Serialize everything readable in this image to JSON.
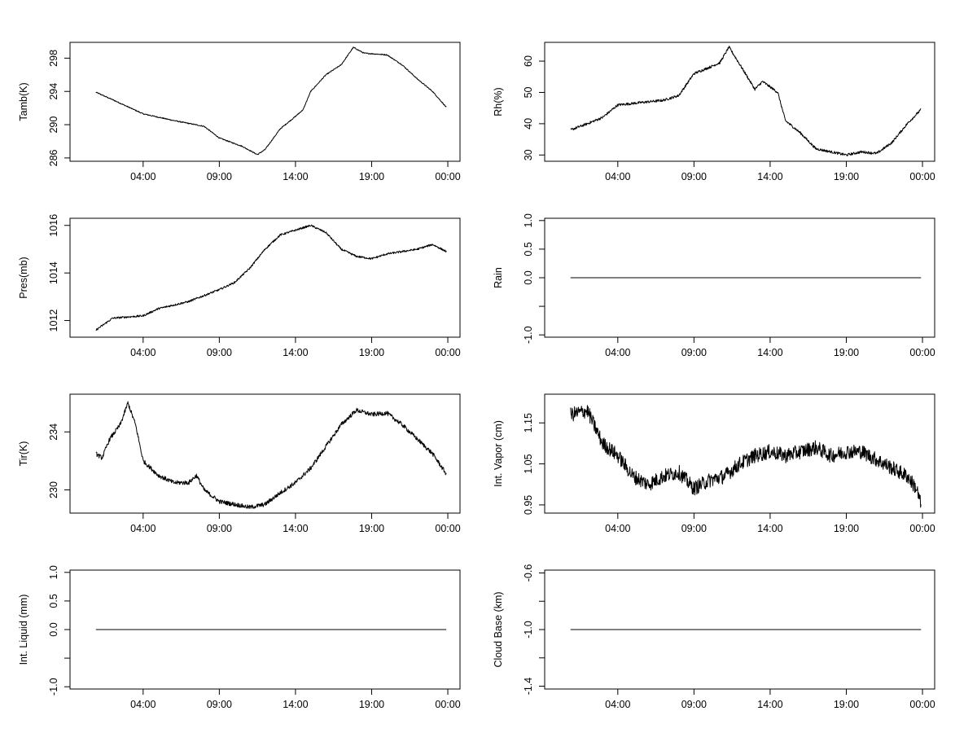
{
  "x_ticks": [
    "04:00",
    "09:00",
    "14:00",
    "19:00",
    "00:00"
  ],
  "x_tick_hours": [
    4,
    9,
    14,
    19,
    24
  ],
  "x_range_hours": [
    -0.8,
    24.8
  ],
  "data_span_hours": [
    0.9,
    23.9
  ],
  "colors": {
    "line": "#000000",
    "axis": "#000000",
    "background": "#ffffff"
  },
  "chart_data": [
    {
      "type": "line",
      "ylabel": "Tamb(K)",
      "ylim": [
        285.6,
        299.9
      ],
      "yticks": [
        286,
        290,
        294,
        298
      ],
      "ytick_labels": [
        "286",
        "290",
        "294",
        "298"
      ],
      "noise": 0.06,
      "points": [
        [
          0.9,
          293.9
        ],
        [
          2,
          293.0
        ],
        [
          4,
          291.3
        ],
        [
          6,
          290.5
        ],
        [
          8,
          289.8
        ],
        [
          9,
          288.4
        ],
        [
          10.5,
          287.4
        ],
        [
          11.5,
          286.4
        ],
        [
          12,
          287.0
        ],
        [
          13,
          289.5
        ],
        [
          14,
          291.0
        ],
        [
          14.5,
          291.8
        ],
        [
          15,
          294.0
        ],
        [
          16,
          296.0
        ],
        [
          17,
          297.2
        ],
        [
          17.8,
          299.3
        ],
        [
          18.5,
          298.6
        ],
        [
          20,
          298.4
        ],
        [
          21,
          297.2
        ],
        [
          22,
          295.5
        ],
        [
          23,
          294.0
        ],
        [
          23.9,
          292.1
        ]
      ]
    },
    {
      "type": "line",
      "ylabel": "Rh(%)",
      "ylim": [
        28,
        66
      ],
      "yticks": [
        30,
        40,
        50,
        60
      ],
      "ytick_labels": [
        "30",
        "40",
        "50",
        "60"
      ],
      "noise": 0.4,
      "points": [
        [
          0.9,
          38.0
        ],
        [
          2,
          40.0
        ],
        [
          3,
          42.0
        ],
        [
          4,
          46.0
        ],
        [
          5,
          46.5
        ],
        [
          6,
          47.0
        ],
        [
          7,
          47.5
        ],
        [
          8,
          49.0
        ],
        [
          9,
          56.0
        ],
        [
          10,
          58.0
        ],
        [
          10.7,
          59.5
        ],
        [
          11.3,
          64.5
        ],
        [
          12,
          59.0
        ],
        [
          12.5,
          55.0
        ],
        [
          13,
          51.0
        ],
        [
          13.5,
          53.5
        ],
        [
          14.5,
          50.0
        ],
        [
          15,
          41.0
        ],
        [
          16,
          37.0
        ],
        [
          17,
          32.0
        ],
        [
          18,
          31.0
        ],
        [
          19,
          30.0
        ],
        [
          20,
          31.0
        ],
        [
          21,
          30.5
        ],
        [
          22,
          34.0
        ],
        [
          23,
          40.0
        ],
        [
          23.9,
          44.5
        ]
      ]
    },
    {
      "type": "line",
      "ylabel": "Pres(mb)",
      "ylim": [
        1011.3,
        1016.3
      ],
      "yticks": [
        1012,
        1014,
        1016
      ],
      "ytick_labels": [
        "1012",
        "1014",
        "1016"
      ],
      "noise": 0.04,
      "points": [
        [
          0.9,
          1011.6
        ],
        [
          2,
          1012.1
        ],
        [
          4,
          1012.2
        ],
        [
          5,
          1012.5
        ],
        [
          7,
          1012.8
        ],
        [
          9,
          1013.3
        ],
        [
          10,
          1013.6
        ],
        [
          11,
          1014.2
        ],
        [
          12,
          1015.0
        ],
        [
          13,
          1015.6
        ],
        [
          14,
          1015.8
        ],
        [
          15,
          1016.0
        ],
        [
          16,
          1015.7
        ],
        [
          17,
          1015.0
        ],
        [
          18,
          1014.7
        ],
        [
          19,
          1014.6
        ],
        [
          20,
          1014.8
        ],
        [
          21,
          1014.9
        ],
        [
          22,
          1015.0
        ],
        [
          23,
          1015.2
        ],
        [
          23.9,
          1014.9
        ]
      ]
    },
    {
      "type": "line",
      "ylabel": "Rain",
      "ylim": [
        -1.04,
        1.04
      ],
      "yticks": [
        -1.0,
        -0.5,
        0.0,
        0.5,
        1.0
      ],
      "ytick_labels": [
        "-1.0",
        "",
        "0.0",
        "0.5",
        "1.0"
      ],
      "noise": 0,
      "points": [
        [
          0.9,
          0.0
        ],
        [
          23.9,
          0.0
        ]
      ]
    },
    {
      "type": "line",
      "ylabel": "Tir(K)",
      "ylim": [
        228.4,
        236.6
      ],
      "yticks": [
        230,
        234
      ],
      "ytick_labels": [
        "230",
        "234"
      ],
      "noise": 0.15,
      "points": [
        [
          0.9,
          232.5
        ],
        [
          1.3,
          232.2
        ],
        [
          1.8,
          233.5
        ],
        [
          2.5,
          234.5
        ],
        [
          3.0,
          236.0
        ],
        [
          3.5,
          234.5
        ],
        [
          4,
          232.0
        ],
        [
          5,
          231.0
        ],
        [
          6,
          230.5
        ],
        [
          7,
          230.5
        ],
        [
          7.5,
          231.0
        ],
        [
          8,
          230.0
        ],
        [
          9,
          229.2
        ],
        [
          10,
          229.0
        ],
        [
          11,
          228.8
        ],
        [
          12,
          229.0
        ],
        [
          13,
          229.8
        ],
        [
          14,
          230.5
        ],
        [
          15,
          231.5
        ],
        [
          16,
          233.0
        ],
        [
          17,
          234.5
        ],
        [
          18,
          235.5
        ],
        [
          19,
          235.2
        ],
        [
          20,
          235.3
        ],
        [
          21,
          234.5
        ],
        [
          22,
          233.5
        ],
        [
          23,
          232.5
        ],
        [
          23.9,
          231.1
        ]
      ]
    },
    {
      "type": "line",
      "ylabel": "Int. Vapor (cm)",
      "ylim": [
        0.93,
        1.22
      ],
      "yticks": [
        0.95,
        1.05,
        1.15
      ],
      "ytick_labels": [
        "0.95",
        "1.05",
        "1.15"
      ],
      "noise": 0.018,
      "points": [
        [
          0.9,
          1.17
        ],
        [
          2,
          1.18
        ],
        [
          3,
          1.1
        ],
        [
          4,
          1.07
        ],
        [
          5,
          1.02
        ],
        [
          6,
          1.0
        ],
        [
          7,
          1.02
        ],
        [
          8,
          1.03
        ],
        [
          9,
          0.99
        ],
        [
          10,
          1.01
        ],
        [
          11,
          1.02
        ],
        [
          12,
          1.05
        ],
        [
          13,
          1.07
        ],
        [
          14,
          1.08
        ],
        [
          15,
          1.07
        ],
        [
          16,
          1.08
        ],
        [
          17,
          1.09
        ],
        [
          18,
          1.07
        ],
        [
          19,
          1.08
        ],
        [
          20,
          1.08
        ],
        [
          21,
          1.06
        ],
        [
          22,
          1.04
        ],
        [
          23,
          1.02
        ],
        [
          23.6,
          0.99
        ],
        [
          23.9,
          0.95
        ]
      ]
    },
    {
      "type": "line",
      "ylabel": "Int. Liquid (mm)",
      "ylim": [
        -1.04,
        1.04
      ],
      "yticks": [
        -1.0,
        -0.5,
        0.0,
        0.5,
        1.0
      ],
      "ytick_labels": [
        "-1.0",
        "",
        "0.0",
        "0.5",
        "1.0"
      ],
      "noise": 0,
      "points": [
        [
          0.9,
          0.0
        ],
        [
          23.9,
          0.0
        ]
      ]
    },
    {
      "type": "line",
      "ylabel": "Cloud Base (km)",
      "ylim": [
        -1.42,
        -0.58
      ],
      "yticks": [
        -1.4,
        -1.2,
        -1.0,
        -0.8,
        -0.6
      ],
      "ytick_labels": [
        "-1.4",
        "",
        "-1.0",
        "",
        "-0.6"
      ],
      "noise": 0,
      "points": [
        [
          0.9,
          -1.0
        ],
        [
          23.9,
          -1.0
        ]
      ]
    }
  ]
}
